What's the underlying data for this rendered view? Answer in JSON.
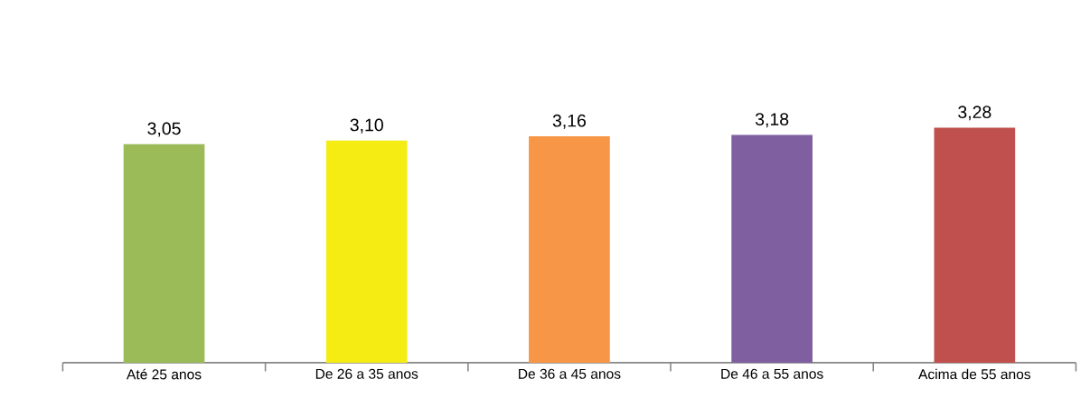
{
  "chart_data": {
    "type": "bar",
    "categories": [
      "Até 25 anos",
      "De 26 a 35 anos",
      "De 36 a 45 anos",
      "De 46 a 55 anos",
      "Acima de 55 anos"
    ],
    "values": [
      3.05,
      3.1,
      3.16,
      3.18,
      3.28
    ],
    "value_labels": [
      "3,05",
      "3,10",
      "3,16",
      "3,18",
      "3,28"
    ],
    "colors": [
      "#9bbb59",
      "#f4ec12",
      "#f79646",
      "#7f5fa0",
      "#c0504d"
    ],
    "tick_labels": "x"
  }
}
